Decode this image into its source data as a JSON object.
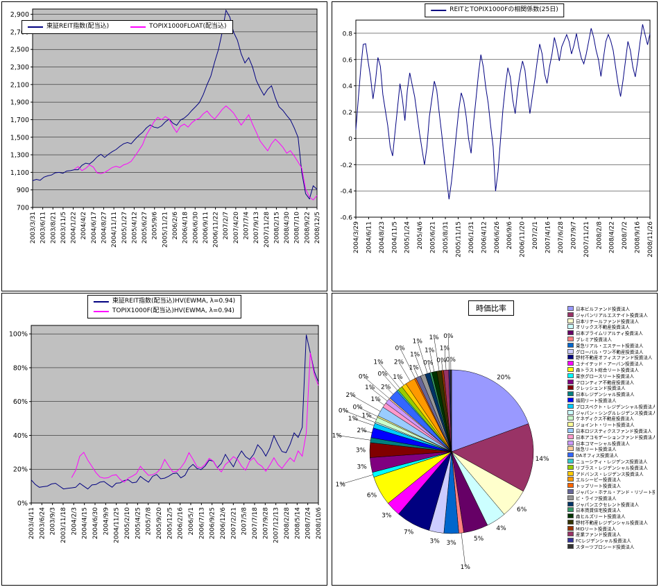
{
  "page": {
    "background": "#FFFFFF"
  },
  "chart_data": [
    {
      "type": "line",
      "name": "index-comparison",
      "ylim": [
        700,
        2900
      ],
      "ylim_draw": [
        700,
        2960
      ],
      "y_step": 200,
      "y_format": "comma",
      "plot_bg": "#C0C0C0",
      "grid": true,
      "legend_position": "top-left-inside",
      "x_labels": [
        "2003/3/31",
        "2003/6/11",
        "2003/8/21",
        "2003/11/5",
        "2004/1/22",
        "2004/4/2",
        "2004/6/17",
        "2004/8/27",
        "2004/11/11",
        "2005/1/27",
        "2005/4/12",
        "2005/6/27",
        "2005/9/6",
        "2005/11/21",
        "2006/2/6",
        "2006/4/18",
        "2006/6/30",
        "2006/9/11",
        "2006/11/22",
        "2007/2/7",
        "2007/4/20",
        "2007/7/4",
        "2007/9/13",
        "2007/11/28",
        "2008/2/15",
        "2008/4/30",
        "2008/7/10",
        "2008/9/22",
        "2008/12/5"
      ],
      "series": [
        {
          "name": "東証REIT指数(配当込)",
          "color": "#000080",
          "values": [
            1000,
            1020,
            1015,
            1040,
            1060,
            1075,
            1090,
            1100,
            1095,
            1110,
            1120,
            1135,
            1125,
            1180,
            1210,
            1190,
            1230,
            1280,
            1300,
            1270,
            1310,
            1330,
            1360,
            1400,
            1420,
            1440,
            1430,
            1470,
            1520,
            1560,
            1600,
            1640,
            1620,
            1600,
            1630,
            1680,
            1700,
            1660,
            1640,
            1690,
            1720,
            1760,
            1800,
            1850,
            1900,
            1980,
            2100,
            2200,
            2350,
            2500,
            2700,
            2940,
            2870,
            2700,
            2600,
            2450,
            2350,
            2400,
            2300,
            2150,
            2050,
            1980,
            2050,
            2080,
            1950,
            1850,
            1800,
            1750,
            1700,
            1600,
            1500,
            1100,
            850,
            800,
            950,
            900
          ]
        },
        {
          "name": "TOPIX1000FLOAT(配当込)",
          "color": "#FF00FF",
          "values": [
            null,
            null,
            null,
            null,
            null,
            null,
            null,
            null,
            null,
            null,
            null,
            1140,
            1160,
            1120,
            1150,
            1180,
            1160,
            1100,
            1080,
            1100,
            1130,
            1150,
            1170,
            1160,
            1180,
            1200,
            1230,
            1280,
            1350,
            1420,
            1520,
            1600,
            1680,
            1720,
            1700,
            1740,
            1700,
            1620,
            1560,
            1620,
            1650,
            1620,
            1660,
            1700,
            1720,
            1760,
            1800,
            1750,
            1700,
            1760,
            1820,
            1850,
            1820,
            1780,
            1700,
            1640,
            1700,
            1750,
            1650,
            1560,
            1450,
            1400,
            1350,
            1420,
            1480,
            1440,
            1380,
            1320,
            1350,
            1280,
            1220,
            1150,
            900,
            820,
            790,
            830
          ]
        }
      ]
    },
    {
      "type": "line",
      "name": "correlation-25d",
      "ylim": [
        -0.6,
        0.8
      ],
      "ylim_draw": [
        -0.6,
        0.9
      ],
      "y_step": 0.2,
      "y_format": "plain",
      "plot_bg": "#FFFFFF",
      "grid": true,
      "legend_position": "top-center",
      "x_labels": [
        "2004/3/29",
        "2004/6/11",
        "2004/8/23",
        "2004/11/5",
        "2005/1/24",
        "2005/4/6",
        "2005/6/21",
        "2005/8/31",
        "2005/11/15",
        "2006/1/31",
        "2006/4/12",
        "2006/6/26",
        "2006/9/6",
        "2006/11/20",
        "2007/2/1",
        "2007/4/16",
        "2007/6/28",
        "2007/9/7",
        "2007/11/21",
        "2008/2/8",
        "2008/4/22",
        "2008/7/2",
        "2008/9/16",
        "2008/11/26"
      ],
      "series": [
        {
          "name": "REITとTOPIX1000Fの相関係数(25日)",
          "color": "#000080",
          "values": [
            0.05,
            0.3,
            0.55,
            0.7,
            0.72,
            0.6,
            0.45,
            0.3,
            0.45,
            0.6,
            0.55,
            0.35,
            0.2,
            0.1,
            -0.05,
            -0.15,
            0.05,
            0.25,
            0.4,
            0.3,
            0.15,
            0.35,
            0.5,
            0.42,
            0.3,
            0.18,
            0.05,
            -0.1,
            -0.2,
            -0.05,
            0.15,
            0.3,
            0.45,
            0.35,
            0.2,
            0.05,
            -0.15,
            -0.3,
            -0.45,
            -0.35,
            -0.15,
            0.05,
            0.2,
            0.35,
            0.3,
            0.15,
            0,
            -0.1,
            0.1,
            0.3,
            0.5,
            0.62,
            0.55,
            0.4,
            0.25,
            0.1,
            -0.05,
            -0.42,
            -0.25,
            0,
            0.2,
            0.4,
            0.55,
            0.45,
            0.3,
            0.2,
            0.35,
            0.5,
            0.6,
            0.5,
            0.35,
            0.2,
            0.3,
            0.45,
            0.6,
            0.7,
            0.65,
            0.5,
            0.4,
            0.55,
            0.65,
            0.75,
            0.7,
            0.6,
            0.68,
            0.75,
            0.8,
            0.72,
            0.65,
            0.72,
            0.78,
            0.7,
            0.62,
            0.55,
            0.65,
            0.75,
            0.82,
            0.78,
            0.68,
            0.58,
            0.48,
            0.62,
            0.72,
            0.8,
            0.75,
            0.65,
            0.55,
            0.42,
            0.3,
            0.45,
            0.6,
            0.72,
            0.68,
            0.55,
            0.45,
            0.6,
            0.75,
            0.85,
            0.8,
            0.72,
            0.78
          ]
        }
      ]
    },
    {
      "type": "line",
      "name": "historical-volatility",
      "ylim": [
        0,
        100
      ],
      "ylim_draw": [
        0,
        105
      ],
      "y_step": 20,
      "y_format": "percent",
      "plot_bg": "#C0C0C0",
      "grid": true,
      "legend_position": "top-center",
      "x_labels": [
        "2003/4/11",
        "2003/6/24",
        "2003/9/3",
        "2003/11/18",
        "2004/2/3",
        "2004/4/15",
        "2004/6/30",
        "2004/9/9",
        "2004/11/25",
        "2005/2/10",
        "2005/4/25",
        "2005/7/8",
        "2005/9/20",
        "2005/12/5",
        "2006/2/16",
        "2006/5/1",
        "2006/7/13",
        "2006/9/25",
        "2006/12/6",
        "2007/2/21",
        "2007/5/8",
        "2007/7/18",
        "2007/9/28",
        "2007/12/13",
        "2008/2/28",
        "2008/5/14",
        "2008/7/24",
        "2008/10/6"
      ],
      "series": [
        {
          "name": "東証REIT指数(配当込)HV(EWMA, λ=0.94)",
          "color": "#000080",
          "values": [
            13,
            11,
            10,
            9,
            10,
            12,
            11,
            10,
            9,
            8,
            9,
            10,
            11,
            10,
            9,
            10,
            11,
            13,
            12,
            11,
            10,
            11,
            12,
            14,
            13,
            12,
            13,
            15,
            14,
            13,
            15,
            17,
            15,
            14,
            16,
            18,
            17,
            15,
            17,
            20,
            23,
            21,
            19,
            22,
            26,
            24,
            21,
            24,
            28,
            25,
            22,
            26,
            31,
            28,
            25,
            29,
            35,
            31,
            28,
            33,
            39,
            35,
            31,
            29,
            35,
            42,
            38,
            45,
            100,
            88,
            78,
            72
          ]
        },
        {
          "name": "TOPIX1000F(配当込)HV(EWMA, λ=0.94)",
          "color": "#FF00FF",
          "values": [
            null,
            null,
            null,
            null,
            null,
            null,
            null,
            null,
            null,
            null,
            15,
            20,
            27,
            30,
            26,
            21,
            18,
            16,
            14,
            15,
            17,
            16,
            14,
            13,
            14,
            16,
            18,
            21,
            19,
            17,
            16,
            18,
            21,
            25,
            22,
            19,
            18,
            21,
            25,
            29,
            26,
            22,
            20,
            23,
            27,
            24,
            21,
            19,
            22,
            25,
            28,
            25,
            22,
            20,
            24,
            27,
            24,
            21,
            19,
            23,
            26,
            23,
            21,
            23,
            27,
            25,
            30,
            28,
            42,
            88,
            76,
            70
          ]
        }
      ]
    },
    {
      "type": "pie",
      "name": "market-cap-weights",
      "title": "時価比率",
      "labels": [
        "日本ビルファンド投資法人",
        "ジャパンリアルエステイト投資法人",
        "日本リテールファンド投資法人",
        "オリックス不動産投資法人",
        "日本プライムリアルティ投資法人",
        "プレミア投資法人",
        "東急リアル・エステート投資法人",
        "グローバル・ワン不動産投資法人",
        "野村不動産オフィスファンド投資法人",
        "ユナイテッド・アーバン投資法人",
        "森トラスト総合リート投資法人",
        "東京グロースリート投資法人",
        "フロンティア不動産投資法人",
        "クレッシェンド投資法人",
        "日本レジデンシャル投資法人",
        "福岡リート投資法人",
        "プロスペクト・レジデンシャル投資法人",
        "ジャパン・シングルレジデンス投資法人",
        "ケネディクス不動産投資法人",
        "ジョイント・リート投資法人",
        "日本ロジスティクスファンド投資法人",
        "日本アコモデーションファンド投資法人",
        "日本コマーシャル投資法人",
        "阪急リート投資法人",
        "DAオフィス投資法人",
        "ニューシティ・レジデンス投資法人",
        "リプラス・レジデンシャル投資法人",
        "アドバンス・レジデンス投資法人",
        "エルシーピー投資法人",
        "トップリート投資法人",
        "ジャパン・ホテル・アンド・リゾート投資法人",
        "ビ・ライフ投資法人",
        "ジャパンエクセレント投資法人",
        "日本賃貸住宅投資法人",
        "森ヒルズリート投資法人",
        "野村不動産レジデンシャル投資法人",
        "MIDリート投資法人",
        "産業ファンド投資法人",
        "FCレジデンシャル投資法人",
        "スターツプロシード投資法人"
      ],
      "values": [
        20,
        14,
        6,
        4,
        5,
        1,
        3,
        3,
        7,
        3,
        6,
        1,
        3,
        3,
        1,
        2,
        1,
        0.3,
        1,
        0.3,
        2,
        1,
        1,
        0.3,
        2,
        0.3,
        1,
        1,
        2,
        0.3,
        1,
        1,
        1,
        0.4,
        1,
        1,
        0.4,
        1,
        0.3,
        0.3
      ],
      "display_percent": [
        "20%",
        "14%",
        "6%",
        "4%",
        "5%",
        "1%",
        "3%",
        "3%",
        "7%",
        "3%",
        "6%",
        "1%",
        "3%",
        "3%",
        "1%",
        "2%",
        "1%",
        "0%",
        "1%",
        "0%",
        "2%",
        "1%",
        "1%",
        "0%",
        "2%",
        "0%",
        "1%",
        "1%",
        "2%",
        "0%",
        "1%",
        "1%",
        "1%",
        "0%",
        "1%",
        "1%",
        "0%",
        "1%",
        "0%",
        "0%"
      ],
      "colors": [
        "#9999FF",
        "#993366",
        "#FFFFCC",
        "#CCFFFF",
        "#660066",
        "#FF8080",
        "#0066CC",
        "#CCCCFF",
        "#000080",
        "#FF00FF",
        "#FFFF00",
        "#00FFFF",
        "#800080",
        "#800000",
        "#008080",
        "#0000FF",
        "#00CCFF",
        "#CCFFFF",
        "#CCFFCC",
        "#FFFF99",
        "#99CCFF",
        "#FF99CC",
        "#CC99FF",
        "#FFCC99",
        "#3366FF",
        "#33CCCC",
        "#99CC00",
        "#FFCC00",
        "#FF9900",
        "#FF6600",
        "#666699",
        "#969696",
        "#003366",
        "#339966",
        "#003300",
        "#333300",
        "#993300",
        "#993366",
        "#333399",
        "#333333"
      ]
    }
  ]
}
